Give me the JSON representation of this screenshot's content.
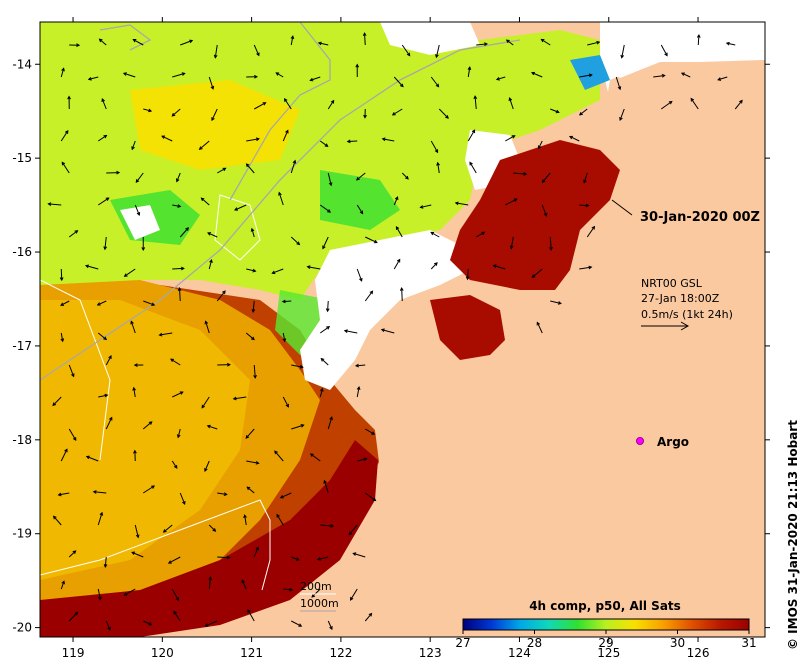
{
  "map": {
    "lon_range": [
      118.63,
      126.75
    ],
    "lat_range": [
      -20.1,
      -13.55
    ],
    "lon_ticks": [
      "119",
      "120",
      "121",
      "122",
      "123",
      "124",
      "125",
      "126"
    ],
    "lat_ticks": [
      "-14",
      "-15",
      "-16",
      "-17",
      "-18",
      "-19",
      "-20"
    ],
    "land_color": "#fbc9a0",
    "no_data_color": "#ffffff"
  },
  "annotations": {
    "date_label": "30-Jan-2020 00Z",
    "current_source": "NRT00 GSL",
    "current_time": "27-Jan 18:00Z",
    "current_scale": "0.5m/s (1kt 24h)",
    "argo_label": "Argo",
    "contour_200": "200m",
    "contour_1000": "1000m"
  },
  "colorbar": {
    "title": "4h comp, p50, All Sats",
    "ticks": [
      "27",
      "28",
      "29",
      "30",
      "31"
    ],
    "min": 27,
    "max": 31,
    "colors": [
      "#00007a",
      "#0038d6",
      "#00a8e6",
      "#10d8b8",
      "#30e030",
      "#b8f020",
      "#f8e000",
      "#f8a000",
      "#e05000",
      "#b81800",
      "#9a0000"
    ]
  },
  "credit": "© IMOS 31-Jan-2020 21:13 Hobart"
}
